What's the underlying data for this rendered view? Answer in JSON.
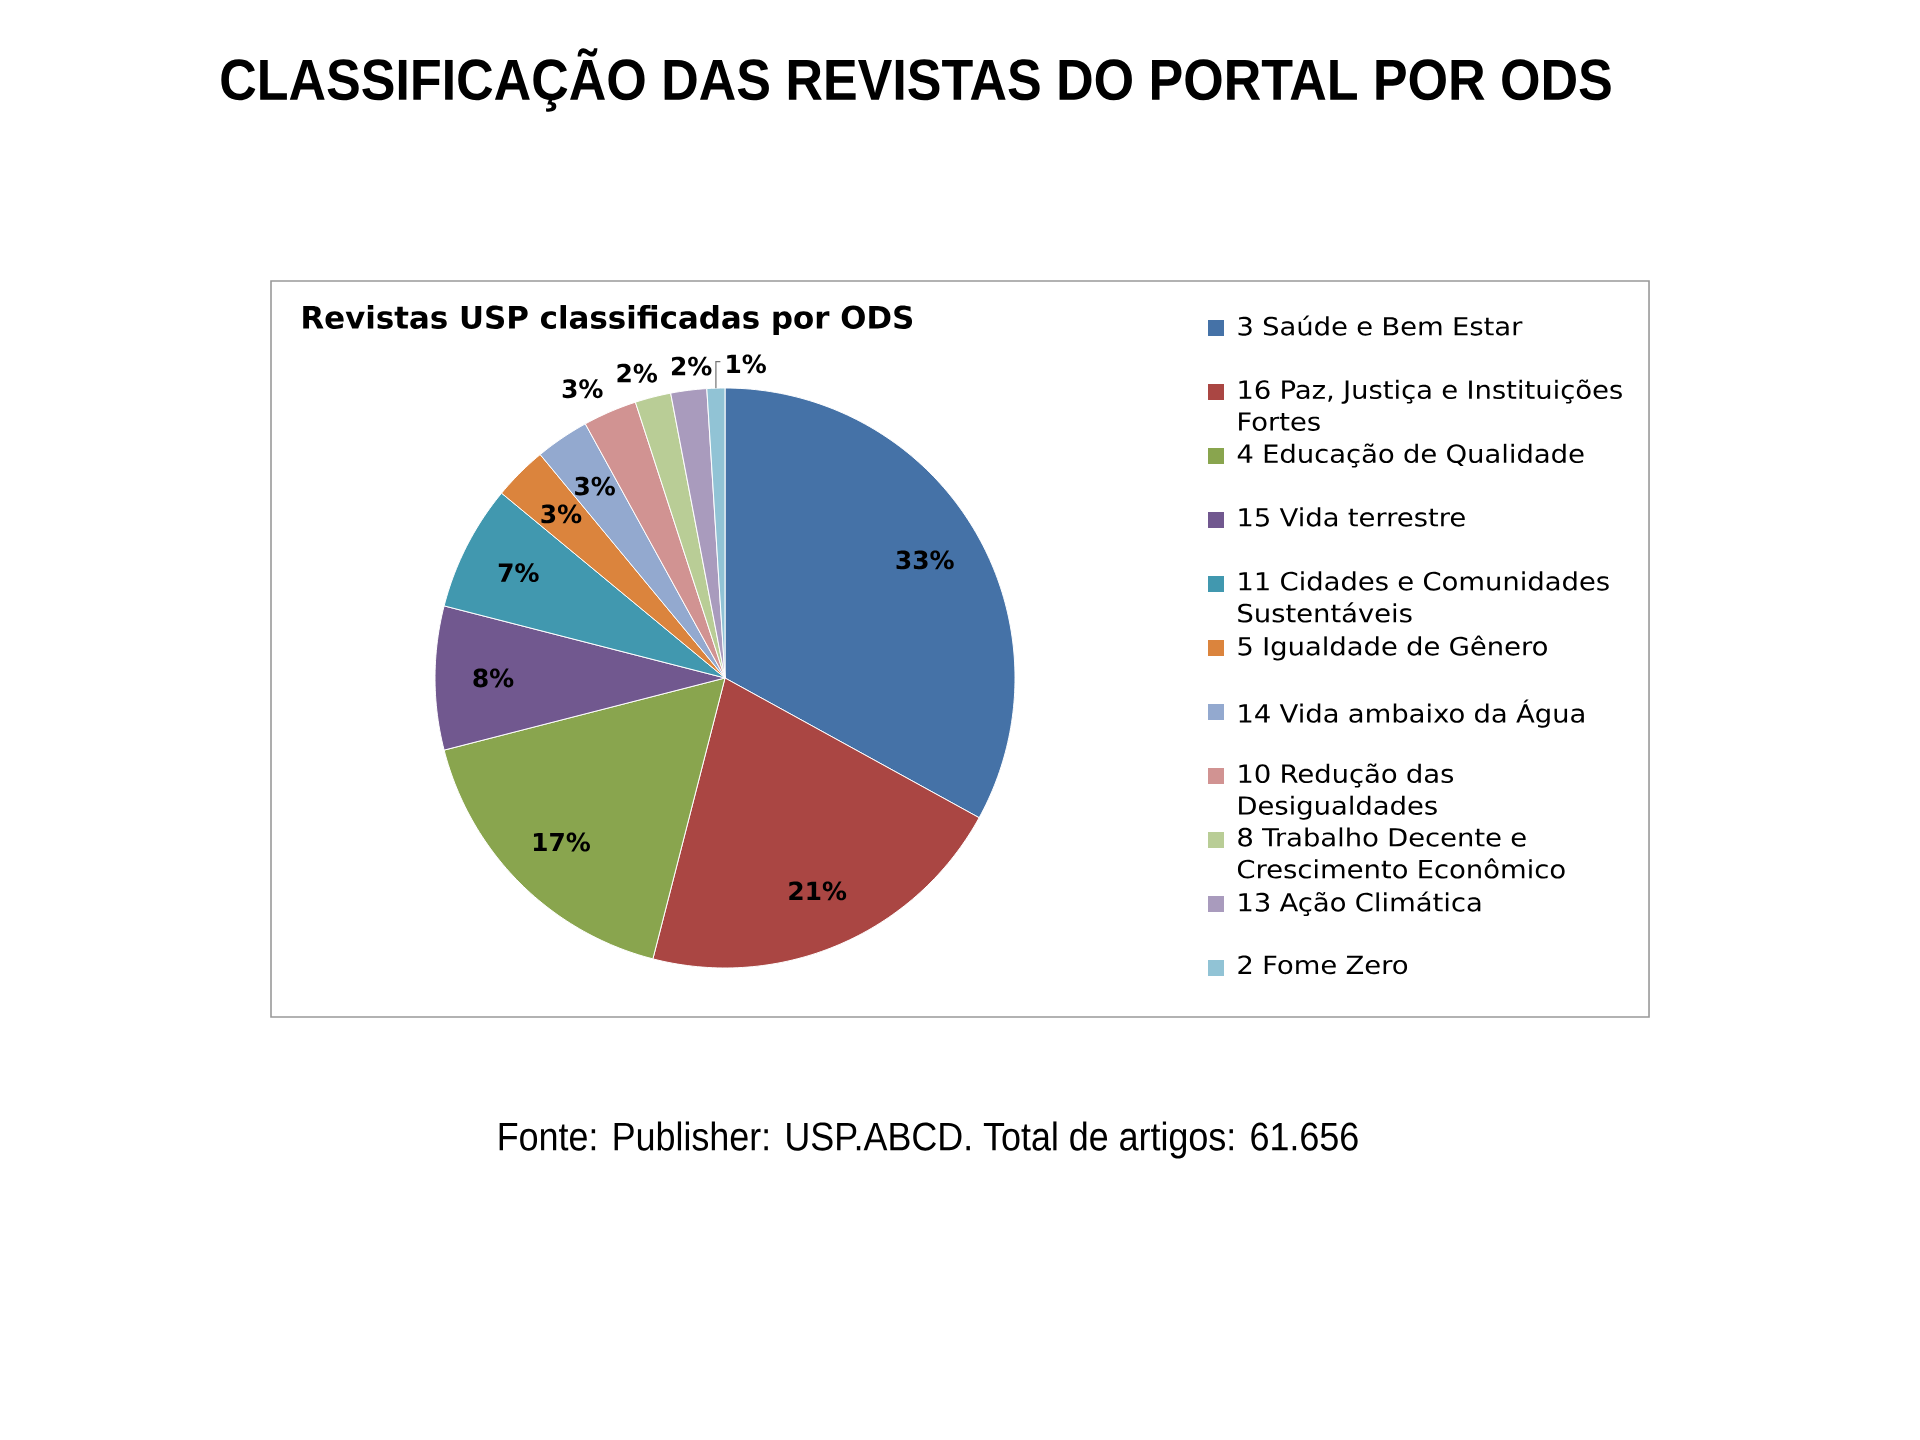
{
  "chart_data": {
    "type": "pie",
    "title": "CLASSIFICAÇÃO DAS REVISTAS DO PORTAL POR ODS",
    "subtitle": "Revistas USP classificadas por ODS",
    "categories": [
      "3 Saúde e Bem Estar",
      "16 Paz, Justiça e Instituições Fortes",
      "4 Educação de Qualidade",
      "15 Vida terrestre",
      "11 Cidades e Comunidades Sustentáveis",
      "5 Igualdade de Gênero",
      "14 Vida ambaixo da Água",
      "10 Redução das Desigualdades",
      "8 Trabalho Decente e Crescimento Econômico",
      "13 Ação Climática",
      "2 Fome Zero"
    ],
    "values": [
      33,
      21,
      17,
      8,
      7,
      3,
      3,
      3,
      2,
      2,
      1
    ],
    "value_labels": [
      "33%",
      "21%",
      "17%",
      "8%",
      "7%",
      "3%",
      "3%",
      "3%",
      "2%",
      "2%",
      "1%"
    ],
    "colors": [
      "#4572a7",
      "#aa4643",
      "#89a54e",
      "#71588f",
      "#4198af",
      "#db843d",
      "#93a9cf",
      "#d19392",
      "#b9cd96",
      "#a99bbd",
      "#91c3d5"
    ],
    "legend": "right",
    "annotations": [
      "Fonte: Publisher: USP.ABCD. Total de artigos: 61.656"
    ]
  }
}
